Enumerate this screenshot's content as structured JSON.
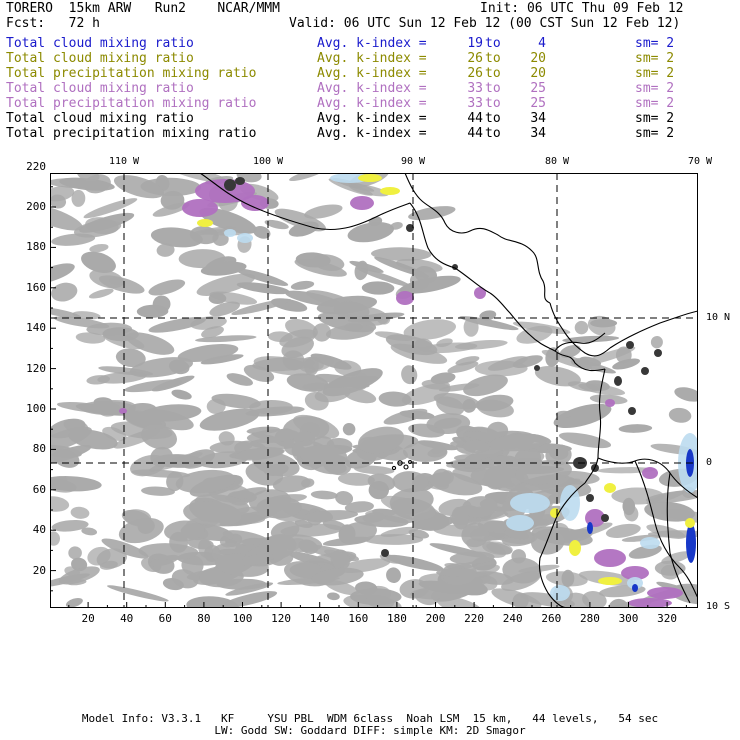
{
  "header": {
    "line1_left": "TORERO  15km ARW   Run2    NCAR/MMM",
    "line1_right": "Init: 06 UTC Thu 09 Feb 12",
    "line2_left": "Fcst:   72 h",
    "line2_right": "Valid: 06 UTC Sun 12 Feb 12 (00 CST Sun 12 Feb 12)"
  },
  "legend": [
    {
      "field": "Total cloud mixing ratio",
      "avg": "Avg. k-index =",
      "from": "19",
      "to": "to",
      "till": "4",
      "sm": "sm= 2",
      "color": "#1a1acc"
    },
    {
      "field": "Total cloud mixing ratio",
      "avg": "Avg. k-index =",
      "from": "26",
      "to": "to",
      "till": "20",
      "sm": "sm= 2",
      "color": "#8c8a00"
    },
    {
      "field": "Total precipitation mixing ratio",
      "avg": "Avg. k-index =",
      "from": "26",
      "to": "to",
      "till": "20",
      "sm": "sm= 2",
      "color": "#8c8a00"
    },
    {
      "field": "Total cloud mixing ratio",
      "avg": "Avg. k-index =",
      "from": "33",
      "to": "to",
      "till": "25",
      "sm": "sm= 2",
      "color": "#b070c0"
    },
    {
      "field": "Total precipitation mixing ratio",
      "avg": "Avg. k-index =",
      "from": "33",
      "to": "to",
      "till": "25",
      "sm": "sm= 2",
      "color": "#b070c0"
    },
    {
      "field": "Total cloud mixing ratio",
      "avg": "Avg. k-index =",
      "from": "44",
      "to": "to",
      "till": "34",
      "sm": "sm= 2",
      "color": "#000000"
    },
    {
      "field": "Total precipitation mixing ratio",
      "avg": "Avg. k-index =",
      "from": "44",
      "to": "to",
      "till": "34",
      "sm": "sm= 2",
      "color": "#000000"
    }
  ],
  "map": {
    "lon_labels": [
      "110 W",
      "100 W",
      "90 W",
      "80 W",
      "70 W"
    ],
    "lat_labels": [
      "10 N",
      "0",
      "10 S"
    ],
    "y_ticks": [
      "220",
      "200",
      "180",
      "160",
      "140",
      "120",
      "100",
      "80",
      "60",
      "40",
      "20"
    ],
    "x_ticks": [
      "20",
      "40",
      "60",
      "80",
      "100",
      "120",
      "140",
      "160",
      "180",
      "200",
      "220",
      "240",
      "260",
      "280",
      "300",
      "320"
    ],
    "colors": {
      "cloud_gray": "#a8a8a8",
      "dark_core": "#383838",
      "purple": "#b070c0",
      "yellow": "#f0f040",
      "light_blue": "#bcdcf0",
      "blue": "#1838c8",
      "coast": "#000000"
    }
  },
  "footer": {
    "line1": "Model Info: V3.3.1   KF     YSU PBL  WDM 6class  Noah LSM  15 km,   44 levels,   54 sec",
    "line2": "LW: Godd SW: Goddard DIFF: simple KM: 2D Smagor"
  }
}
